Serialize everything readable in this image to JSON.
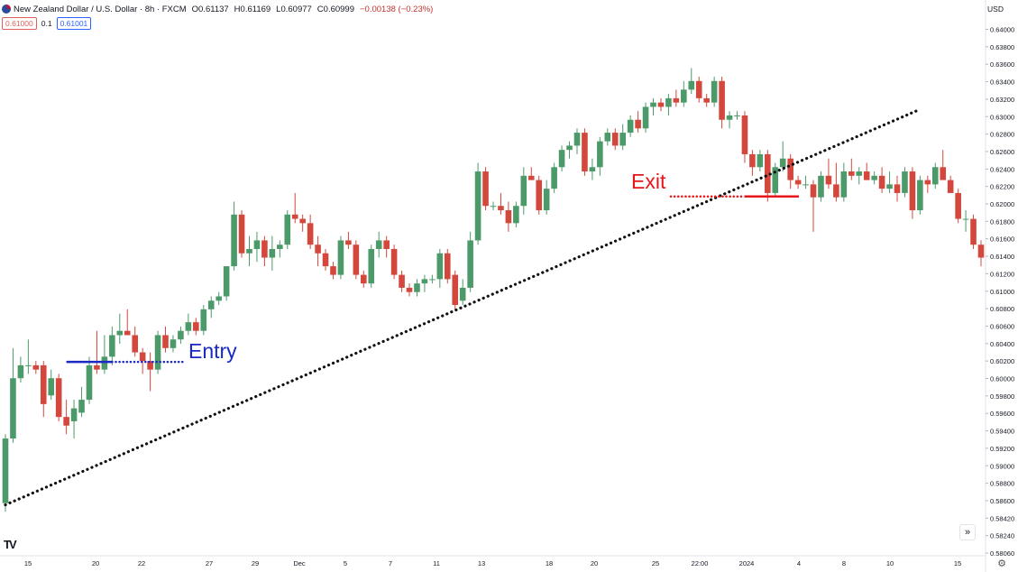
{
  "header": {
    "symbol_title": "New Zealand Dollar / U.S. Dollar · 8h · FXCM",
    "open": "O0.61137",
    "high": "H0.61169",
    "low": "L0.60977",
    "close": "C0.60999",
    "change": "−0.00138 (−0.23%)"
  },
  "trade": {
    "sell_price": "0.61000",
    "spread": "0.1",
    "buy_price": "0.61001"
  },
  "price_axis": {
    "currency": "USD",
    "ticks": [
      "0.64000",
      "0.63800",
      "0.63600",
      "0.63400",
      "0.63200",
      "0.63000",
      "0.62800",
      "0.62600",
      "0.62400",
      "0.62200",
      "0.62000",
      "0.61800",
      "0.61600",
      "0.61400",
      "0.61200",
      "0.61000",
      "0.60800",
      "0.60600",
      "0.60400",
      "0.60200",
      "0.60000",
      "0.59800",
      "0.59600",
      "0.59400",
      "0.59200",
      "0.59000",
      "0.58800",
      "0.58600",
      "0.58420",
      "0.58240",
      "0.58060"
    ]
  },
  "time_axis": {
    "labels": [
      "15",
      "20",
      "22",
      "27",
      "29",
      "Dec",
      "5",
      "7",
      "11",
      "13",
      "18",
      "20",
      "25",
      "22:00",
      "2024",
      "4",
      "8",
      "10",
      "15"
    ]
  },
  "annotations": {
    "entry_label": "Entry",
    "exit_label": "Exit"
  },
  "colors": {
    "up": "#4c9a6a",
    "down": "#d4473c",
    "entry": "#1a28c4",
    "exit": "#e8151b",
    "trendline": "#111111"
  },
  "icons": {
    "logo": "tradingview-logo-icon",
    "scroll": "double-chevron-right-icon",
    "settings": "gear-icon"
  },
  "chart_data": {
    "type": "candlestick",
    "title": "New Zealand Dollar / U.S. Dollar · 8h · FXCM",
    "xlabel": "",
    "ylabel": "",
    "ylim": [
      0.5806,
      0.6415
    ],
    "candles": [
      {
        "o": 0.5865,
        "h": 0.5945,
        "l": 0.5855,
        "c": 0.594
      },
      {
        "o": 0.594,
        "h": 0.6045,
        "l": 0.5935,
        "c": 0.601
      },
      {
        "o": 0.601,
        "h": 0.6035,
        "l": 0.6005,
        "c": 0.6025
      },
      {
        "o": 0.6025,
        "h": 0.6055,
        "l": 0.6015,
        "c": 0.6025
      },
      {
        "o": 0.6025,
        "h": 0.603,
        "l": 0.6015,
        "c": 0.602
      },
      {
        "o": 0.6025,
        "h": 0.603,
        "l": 0.5965,
        "c": 0.598
      },
      {
        "o": 0.599,
        "h": 0.602,
        "l": 0.5985,
        "c": 0.601
      },
      {
        "o": 0.601,
        "h": 0.6015,
        "l": 0.596,
        "c": 0.5965
      },
      {
        "o": 0.5965,
        "h": 0.5985,
        "l": 0.5945,
        "c": 0.5955
      },
      {
        "o": 0.596,
        "h": 0.5985,
        "l": 0.594,
        "c": 0.5975
      },
      {
        "o": 0.597,
        "h": 0.6,
        "l": 0.5965,
        "c": 0.5985
      },
      {
        "o": 0.5985,
        "h": 0.6035,
        "l": 0.598,
        "c": 0.6025
      },
      {
        "o": 0.6025,
        "h": 0.6065,
        "l": 0.6015,
        "c": 0.602
      },
      {
        "o": 0.602,
        "h": 0.606,
        "l": 0.6015,
        "c": 0.6035
      },
      {
        "o": 0.6035,
        "h": 0.607,
        "l": 0.6025,
        "c": 0.606
      },
      {
        "o": 0.606,
        "h": 0.6085,
        "l": 0.605,
        "c": 0.6065
      },
      {
        "o": 0.6065,
        "h": 0.609,
        "l": 0.606,
        "c": 0.606
      },
      {
        "o": 0.606,
        "h": 0.607,
        "l": 0.6035,
        "c": 0.604
      },
      {
        "o": 0.604,
        "h": 0.6045,
        "l": 0.6015,
        "c": 0.603
      },
      {
        "o": 0.603,
        "h": 0.604,
        "l": 0.5995,
        "c": 0.602
      },
      {
        "o": 0.602,
        "h": 0.6065,
        "l": 0.6015,
        "c": 0.606
      },
      {
        "o": 0.606,
        "h": 0.607,
        "l": 0.604,
        "c": 0.6045
      },
      {
        "o": 0.6045,
        "h": 0.606,
        "l": 0.604,
        "c": 0.6055
      },
      {
        "o": 0.6055,
        "h": 0.607,
        "l": 0.605,
        "c": 0.6065
      },
      {
        "o": 0.6065,
        "h": 0.6085,
        "l": 0.606,
        "c": 0.6075
      },
      {
        "o": 0.6075,
        "h": 0.608,
        "l": 0.606,
        "c": 0.6065
      },
      {
        "o": 0.6065,
        "h": 0.6095,
        "l": 0.606,
        "c": 0.609
      },
      {
        "o": 0.609,
        "h": 0.6105,
        "l": 0.608,
        "c": 0.61
      },
      {
        "o": 0.61,
        "h": 0.611,
        "l": 0.6095,
        "c": 0.6105
      },
      {
        "o": 0.6105,
        "h": 0.614,
        "l": 0.61,
        "c": 0.614
      },
      {
        "o": 0.614,
        "h": 0.6215,
        "l": 0.6135,
        "c": 0.62
      },
      {
        "o": 0.62,
        "h": 0.6205,
        "l": 0.615,
        "c": 0.6155
      },
      {
        "o": 0.6155,
        "h": 0.6175,
        "l": 0.614,
        "c": 0.616
      },
      {
        "o": 0.616,
        "h": 0.618,
        "l": 0.6145,
        "c": 0.617
      },
      {
        "o": 0.617,
        "h": 0.6175,
        "l": 0.614,
        "c": 0.615
      },
      {
        "o": 0.615,
        "h": 0.6175,
        "l": 0.6135,
        "c": 0.616
      },
      {
        "o": 0.616,
        "h": 0.617,
        "l": 0.615,
        "c": 0.6165
      },
      {
        "o": 0.6165,
        "h": 0.6205,
        "l": 0.616,
        "c": 0.62
      },
      {
        "o": 0.62,
        "h": 0.6225,
        "l": 0.619,
        "c": 0.6195
      },
      {
        "o": 0.6195,
        "h": 0.62,
        "l": 0.618,
        "c": 0.619
      },
      {
        "o": 0.619,
        "h": 0.62,
        "l": 0.616,
        "c": 0.6165
      },
      {
        "o": 0.6165,
        "h": 0.6175,
        "l": 0.614,
        "c": 0.6155
      },
      {
        "o": 0.6155,
        "h": 0.616,
        "l": 0.6135,
        "c": 0.614
      },
      {
        "o": 0.614,
        "h": 0.6145,
        "l": 0.6125,
        "c": 0.613
      },
      {
        "o": 0.613,
        "h": 0.6175,
        "l": 0.6125,
        "c": 0.617
      },
      {
        "o": 0.617,
        "h": 0.618,
        "l": 0.616,
        "c": 0.6165
      },
      {
        "o": 0.6165,
        "h": 0.617,
        "l": 0.6125,
        "c": 0.613
      },
      {
        "o": 0.613,
        "h": 0.6135,
        "l": 0.6115,
        "c": 0.612
      },
      {
        "o": 0.612,
        "h": 0.6165,
        "l": 0.6115,
        "c": 0.616
      },
      {
        "o": 0.616,
        "h": 0.618,
        "l": 0.615,
        "c": 0.617
      },
      {
        "o": 0.617,
        "h": 0.6175,
        "l": 0.615,
        "c": 0.616
      },
      {
        "o": 0.616,
        "h": 0.6165,
        "l": 0.6125,
        "c": 0.613
      },
      {
        "o": 0.613,
        "h": 0.6135,
        "l": 0.611,
        "c": 0.6115
      },
      {
        "o": 0.6115,
        "h": 0.612,
        "l": 0.6105,
        "c": 0.611
      },
      {
        "o": 0.611,
        "h": 0.6125,
        "l": 0.6105,
        "c": 0.612
      },
      {
        "o": 0.612,
        "h": 0.613,
        "l": 0.611,
        "c": 0.6125
      },
      {
        "o": 0.6125,
        "h": 0.613,
        "l": 0.612,
        "c": 0.6125
      },
      {
        "o": 0.6125,
        "h": 0.616,
        "l": 0.6115,
        "c": 0.6155
      },
      {
        "o": 0.6155,
        "h": 0.616,
        "l": 0.612,
        "c": 0.6125
      },
      {
        "o": 0.613,
        "h": 0.6135,
        "l": 0.609,
        "c": 0.6095
      },
      {
        "o": 0.61,
        "h": 0.6125,
        "l": 0.6095,
        "c": 0.6115
      },
      {
        "o": 0.6115,
        "h": 0.618,
        "l": 0.611,
        "c": 0.617
      },
      {
        "o": 0.617,
        "h": 0.626,
        "l": 0.6165,
        "c": 0.625
      },
      {
        "o": 0.625,
        "h": 0.6255,
        "l": 0.6205,
        "c": 0.621
      },
      {
        "o": 0.621,
        "h": 0.6215,
        "l": 0.6205,
        "c": 0.621
      },
      {
        "o": 0.621,
        "h": 0.6225,
        "l": 0.62,
        "c": 0.6205
      },
      {
        "o": 0.6205,
        "h": 0.6215,
        "l": 0.618,
        "c": 0.619
      },
      {
        "o": 0.619,
        "h": 0.6215,
        "l": 0.6185,
        "c": 0.621
      },
      {
        "o": 0.621,
        "h": 0.6255,
        "l": 0.62,
        "c": 0.6245
      },
      {
        "o": 0.6245,
        "h": 0.6255,
        "l": 0.624,
        "c": 0.624
      },
      {
        "o": 0.624,
        "h": 0.6245,
        "l": 0.62,
        "c": 0.6205
      },
      {
        "o": 0.6205,
        "h": 0.624,
        "l": 0.62,
        "c": 0.623
      },
      {
        "o": 0.623,
        "h": 0.626,
        "l": 0.6225,
        "c": 0.6255
      },
      {
        "o": 0.6255,
        "h": 0.628,
        "l": 0.625,
        "c": 0.6275
      },
      {
        "o": 0.6275,
        "h": 0.6285,
        "l": 0.6265,
        "c": 0.628
      },
      {
        "o": 0.628,
        "h": 0.63,
        "l": 0.627,
        "c": 0.6295
      },
      {
        "o": 0.6295,
        "h": 0.63,
        "l": 0.6245,
        "c": 0.625
      },
      {
        "o": 0.625,
        "h": 0.6265,
        "l": 0.624,
        "c": 0.6255
      },
      {
        "o": 0.6255,
        "h": 0.629,
        "l": 0.6245,
        "c": 0.6285
      },
      {
        "o": 0.6285,
        "h": 0.63,
        "l": 0.628,
        "c": 0.6295
      },
      {
        "o": 0.6295,
        "h": 0.63,
        "l": 0.6275,
        "c": 0.628
      },
      {
        "o": 0.628,
        "h": 0.6305,
        "l": 0.6275,
        "c": 0.6295
      },
      {
        "o": 0.6295,
        "h": 0.6315,
        "l": 0.629,
        "c": 0.631
      },
      {
        "o": 0.631,
        "h": 0.632,
        "l": 0.6295,
        "c": 0.63
      },
      {
        "o": 0.63,
        "h": 0.633,
        "l": 0.6295,
        "c": 0.6325
      },
      {
        "o": 0.6325,
        "h": 0.6335,
        "l": 0.6315,
        "c": 0.633
      },
      {
        "o": 0.633,
        "h": 0.6335,
        "l": 0.632,
        "c": 0.6325
      },
      {
        "o": 0.6325,
        "h": 0.634,
        "l": 0.6315,
        "c": 0.6335
      },
      {
        "o": 0.6335,
        "h": 0.6345,
        "l": 0.6325,
        "c": 0.633
      },
      {
        "o": 0.633,
        "h": 0.6355,
        "l": 0.6325,
        "c": 0.6345
      },
      {
        "o": 0.6345,
        "h": 0.637,
        "l": 0.634,
        "c": 0.6355
      },
      {
        "o": 0.6355,
        "h": 0.636,
        "l": 0.633,
        "c": 0.6335
      },
      {
        "o": 0.6335,
        "h": 0.634,
        "l": 0.6325,
        "c": 0.633
      },
      {
        "o": 0.633,
        "h": 0.636,
        "l": 0.6325,
        "c": 0.6355
      },
      {
        "o": 0.6355,
        "h": 0.636,
        "l": 0.63,
        "c": 0.631
      },
      {
        "o": 0.631,
        "h": 0.632,
        "l": 0.63,
        "c": 0.6315
      },
      {
        "o": 0.6315,
        "h": 0.632,
        "l": 0.631,
        "c": 0.6315
      },
      {
        "o": 0.6315,
        "h": 0.632,
        "l": 0.626,
        "c": 0.627
      },
      {
        "o": 0.627,
        "h": 0.6275,
        "l": 0.6245,
        "c": 0.6255
      },
      {
        "o": 0.6255,
        "h": 0.6275,
        "l": 0.625,
        "c": 0.627
      },
      {
        "o": 0.627,
        "h": 0.6275,
        "l": 0.6215,
        "c": 0.6225
      },
      {
        "o": 0.6225,
        "h": 0.626,
        "l": 0.622,
        "c": 0.6255
      },
      {
        "o": 0.6255,
        "h": 0.6285,
        "l": 0.625,
        "c": 0.6265
      },
      {
        "o": 0.6265,
        "h": 0.627,
        "l": 0.623,
        "c": 0.624
      },
      {
        "o": 0.624,
        "h": 0.6245,
        "l": 0.623,
        "c": 0.6235
      },
      {
        "o": 0.6235,
        "h": 0.6245,
        "l": 0.623,
        "c": 0.6235
      },
      {
        "o": 0.6235,
        "h": 0.624,
        "l": 0.618,
        "c": 0.622
      },
      {
        "o": 0.622,
        "h": 0.625,
        "l": 0.6215,
        "c": 0.6245
      },
      {
        "o": 0.6245,
        "h": 0.6265,
        "l": 0.623,
        "c": 0.6235
      },
      {
        "o": 0.6235,
        "h": 0.626,
        "l": 0.6215,
        "c": 0.622
      },
      {
        "o": 0.622,
        "h": 0.626,
        "l": 0.6215,
        "c": 0.625
      },
      {
        "o": 0.625,
        "h": 0.6265,
        "l": 0.624,
        "c": 0.6245
      },
      {
        "o": 0.6245,
        "h": 0.6255,
        "l": 0.6235,
        "c": 0.625
      },
      {
        "o": 0.625,
        "h": 0.626,
        "l": 0.624,
        "c": 0.624
      },
      {
        "o": 0.624,
        "h": 0.625,
        "l": 0.6235,
        "c": 0.6245
      },
      {
        "o": 0.6245,
        "h": 0.6255,
        "l": 0.6225,
        "c": 0.623
      },
      {
        "o": 0.623,
        "h": 0.625,
        "l": 0.6225,
        "c": 0.6235
      },
      {
        "o": 0.6235,
        "h": 0.6245,
        "l": 0.6215,
        "c": 0.6225
      },
      {
        "o": 0.6225,
        "h": 0.6255,
        "l": 0.622,
        "c": 0.625
      },
      {
        "o": 0.625,
        "h": 0.6255,
        "l": 0.6195,
        "c": 0.6205
      },
      {
        "o": 0.6205,
        "h": 0.6245,
        "l": 0.62,
        "c": 0.624
      },
      {
        "o": 0.624,
        "h": 0.6245,
        "l": 0.6225,
        "c": 0.6235
      },
      {
        "o": 0.6235,
        "h": 0.626,
        "l": 0.623,
        "c": 0.6255
      },
      {
        "o": 0.6255,
        "h": 0.6275,
        "l": 0.6245,
        "c": 0.624
      },
      {
        "o": 0.624,
        "h": 0.6245,
        "l": 0.6225,
        "c": 0.6225
      },
      {
        "o": 0.6225,
        "h": 0.623,
        "l": 0.619,
        "c": 0.6195
      },
      {
        "o": 0.6195,
        "h": 0.6205,
        "l": 0.618,
        "c": 0.6195
      },
      {
        "o": 0.6195,
        "h": 0.62,
        "l": 0.616,
        "c": 0.6165
      },
      {
        "o": 0.6165,
        "h": 0.617,
        "l": 0.614,
        "c": 0.615
      }
    ],
    "trendline": {
      "from": {
        "index": 0,
        "price": 0.5863
      },
      "to": {
        "index": 119,
        "price": 0.6321
      }
    },
    "entry": {
      "price": 0.6029,
      "from_index": 8,
      "to_index": 23
    },
    "exit": {
      "price": 0.6221,
      "from_index": 96,
      "to_index": 104
    }
  }
}
